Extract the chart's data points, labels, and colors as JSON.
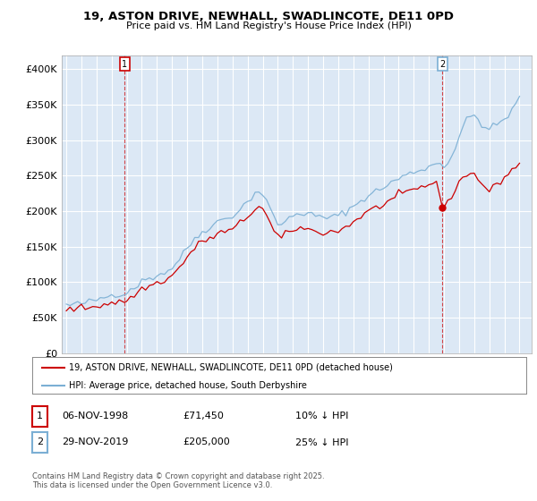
{
  "title": "19, ASTON DRIVE, NEWHALL, SWADLINCOTE, DE11 0PD",
  "subtitle": "Price paid vs. HM Land Registry's House Price Index (HPI)",
  "legend_line1": "19, ASTON DRIVE, NEWHALL, SWADLINCOTE, DE11 0PD (detached house)",
  "legend_line2": "HPI: Average price, detached house, South Derbyshire",
  "annotation1_date": "06-NOV-1998",
  "annotation1_price": "£71,450",
  "annotation1_hpi": "10% ↓ HPI",
  "annotation1_year": 1998.85,
  "annotation1_value": 71450,
  "annotation2_date": "29-NOV-2019",
  "annotation2_price": "£205,000",
  "annotation2_hpi": "25% ↓ HPI",
  "annotation2_year": 2019.9,
  "annotation2_value": 205000,
  "footer": "Contains HM Land Registry data © Crown copyright and database right 2025.\nThis data is licensed under the Open Government Licence v3.0.",
  "red_color": "#cc0000",
  "blue_color": "#7bafd4",
  "background_color": "#dce8f5",
  "plot_bg_color": "#dce8f5",
  "grid_color": "#ffffff",
  "ylim": [
    0,
    420000
  ],
  "yticks": [
    0,
    50000,
    100000,
    150000,
    200000,
    250000,
    300000,
    350000,
    400000
  ],
  "xlim_start": 1994.7,
  "xlim_end": 2025.8,
  "hpi_years": [
    1995.0,
    1995.25,
    1995.5,
    1995.75,
    1996.0,
    1996.25,
    1996.5,
    1996.75,
    1997.0,
    1997.25,
    1997.5,
    1997.75,
    1998.0,
    1998.25,
    1998.5,
    1998.75,
    1999.0,
    1999.25,
    1999.5,
    1999.75,
    2000.0,
    2000.25,
    2000.5,
    2000.75,
    2001.0,
    2001.25,
    2001.5,
    2001.75,
    2002.0,
    2002.25,
    2002.5,
    2002.75,
    2003.0,
    2003.25,
    2003.5,
    2003.75,
    2004.0,
    2004.25,
    2004.5,
    2004.75,
    2005.0,
    2005.25,
    2005.5,
    2005.75,
    2006.0,
    2006.25,
    2006.5,
    2006.75,
    2007.0,
    2007.25,
    2007.5,
    2007.75,
    2008.0,
    2008.25,
    2008.5,
    2008.75,
    2009.0,
    2009.25,
    2009.5,
    2009.75,
    2010.0,
    2010.25,
    2010.5,
    2010.75,
    2011.0,
    2011.25,
    2011.5,
    2011.75,
    2012.0,
    2012.25,
    2012.5,
    2012.75,
    2013.0,
    2013.25,
    2013.5,
    2013.75,
    2014.0,
    2014.25,
    2014.5,
    2014.75,
    2015.0,
    2015.25,
    2015.5,
    2015.75,
    2016.0,
    2016.25,
    2016.5,
    2016.75,
    2017.0,
    2017.25,
    2017.5,
    2017.75,
    2018.0,
    2018.25,
    2018.5,
    2018.75,
    2019.0,
    2019.25,
    2019.5,
    2019.75,
    2020.0,
    2020.25,
    2020.5,
    2020.75,
    2021.0,
    2021.25,
    2021.5,
    2021.75,
    2022.0,
    2022.25,
    2022.5,
    2022.75,
    2023.0,
    2023.25,
    2023.5,
    2023.75,
    2024.0,
    2024.25,
    2024.5,
    2024.75,
    2025.0
  ],
  "hpi_values": [
    68000,
    67500,
    68500,
    69000,
    70000,
    71000,
    72500,
    73000,
    75000,
    77000,
    79000,
    80500,
    82000,
    83500,
    84000,
    83000,
    86000,
    90000,
    93000,
    97000,
    101000,
    104000,
    106000,
    107000,
    110000,
    112000,
    114000,
    116000,
    120000,
    127000,
    133000,
    140000,
    148000,
    155000,
    161000,
    166000,
    171000,
    175000,
    178000,
    181000,
    185000,
    188000,
    190000,
    191000,
    194000,
    198000,
    203000,
    208000,
    213000,
    220000,
    226000,
    228000,
    224000,
    215000,
    202000,
    191000,
    183000,
    182000,
    185000,
    190000,
    194000,
    197000,
    198000,
    197000,
    196000,
    195000,
    193000,
    192000,
    191000,
    191000,
    192000,
    192000,
    194000,
    197000,
    200000,
    203000,
    207000,
    211000,
    215000,
    219000,
    222000,
    225000,
    228000,
    231000,
    234000,
    237000,
    240000,
    243000,
    246000,
    249000,
    251000,
    253000,
    255000,
    257000,
    259000,
    261000,
    263000,
    265000,
    267000,
    268000,
    265000,
    268000,
    278000,
    290000,
    305000,
    318000,
    328000,
    333000,
    335000,
    330000,
    323000,
    318000,
    315000,
    318000,
    322000,
    326000,
    330000,
    335000,
    342000,
    350000,
    360000
  ],
  "red_years": [
    1995.0,
    1995.25,
    1995.5,
    1995.75,
    1996.0,
    1996.25,
    1996.5,
    1996.75,
    1997.0,
    1997.25,
    1997.5,
    1997.75,
    1998.0,
    1998.25,
    1998.5,
    1998.85,
    1999.0,
    1999.25,
    1999.5,
    1999.75,
    2000.0,
    2000.25,
    2000.5,
    2000.75,
    2001.0,
    2001.25,
    2001.5,
    2001.75,
    2002.0,
    2002.25,
    2002.5,
    2002.75,
    2003.0,
    2003.25,
    2003.5,
    2003.75,
    2004.0,
    2004.25,
    2004.5,
    2004.75,
    2005.0,
    2005.25,
    2005.5,
    2005.75,
    2006.0,
    2006.25,
    2006.5,
    2006.75,
    2007.0,
    2007.25,
    2007.5,
    2007.75,
    2008.0,
    2008.25,
    2008.5,
    2008.75,
    2009.0,
    2009.25,
    2009.5,
    2009.75,
    2010.0,
    2010.25,
    2010.5,
    2010.75,
    2011.0,
    2011.25,
    2011.5,
    2011.75,
    2012.0,
    2012.25,
    2012.5,
    2012.75,
    2013.0,
    2013.25,
    2013.5,
    2013.75,
    2014.0,
    2014.25,
    2014.5,
    2014.75,
    2015.0,
    2015.25,
    2015.5,
    2015.75,
    2016.0,
    2016.25,
    2016.5,
    2016.75,
    2017.0,
    2017.25,
    2017.5,
    2017.75,
    2018.0,
    2018.25,
    2018.5,
    2018.75,
    2019.0,
    2019.25,
    2019.5,
    2019.9,
    2020.0,
    2020.25,
    2020.5,
    2020.75,
    2021.0,
    2021.25,
    2021.5,
    2021.75,
    2022.0,
    2022.25,
    2022.5,
    2022.75,
    2023.0,
    2023.25,
    2023.5,
    2023.75,
    2024.0,
    2024.25,
    2024.5,
    2024.75,
    2025.0
  ],
  "red_values": [
    62000,
    61500,
    62500,
    63000,
    63500,
    64000,
    65000,
    65500,
    66500,
    68000,
    69500,
    70500,
    71000,
    71200,
    71300,
    71450,
    74000,
    78000,
    82000,
    86000,
    90000,
    93000,
    95000,
    96000,
    99000,
    101000,
    103000,
    105000,
    109000,
    115000,
    121000,
    128000,
    135000,
    142000,
    148000,
    153000,
    157000,
    160000,
    162000,
    164000,
    167000,
    170000,
    172000,
    172000,
    174000,
    178000,
    183000,
    187000,
    193000,
    198000,
    204000,
    207000,
    203000,
    194000,
    182000,
    172000,
    164000,
    163000,
    166000,
    170000,
    174000,
    176000,
    177000,
    175000,
    174000,
    173000,
    172000,
    171000,
    170000,
    170000,
    171000,
    171000,
    173000,
    175000,
    178000,
    181000,
    185000,
    189000,
    193000,
    197000,
    200000,
    202000,
    205000,
    207000,
    210000,
    213000,
    216000,
    218000,
    221000,
    224000,
    226000,
    228000,
    230000,
    232000,
    234000,
    236000,
    238000,
    240000,
    242000,
    205000,
    210000,
    214000,
    222000,
    230000,
    240000,
    248000,
    252000,
    255000,
    252000,
    246000,
    238000,
    233000,
    229000,
    232000,
    238000,
    243000,
    248000,
    253000,
    258000,
    263000,
    268000
  ]
}
